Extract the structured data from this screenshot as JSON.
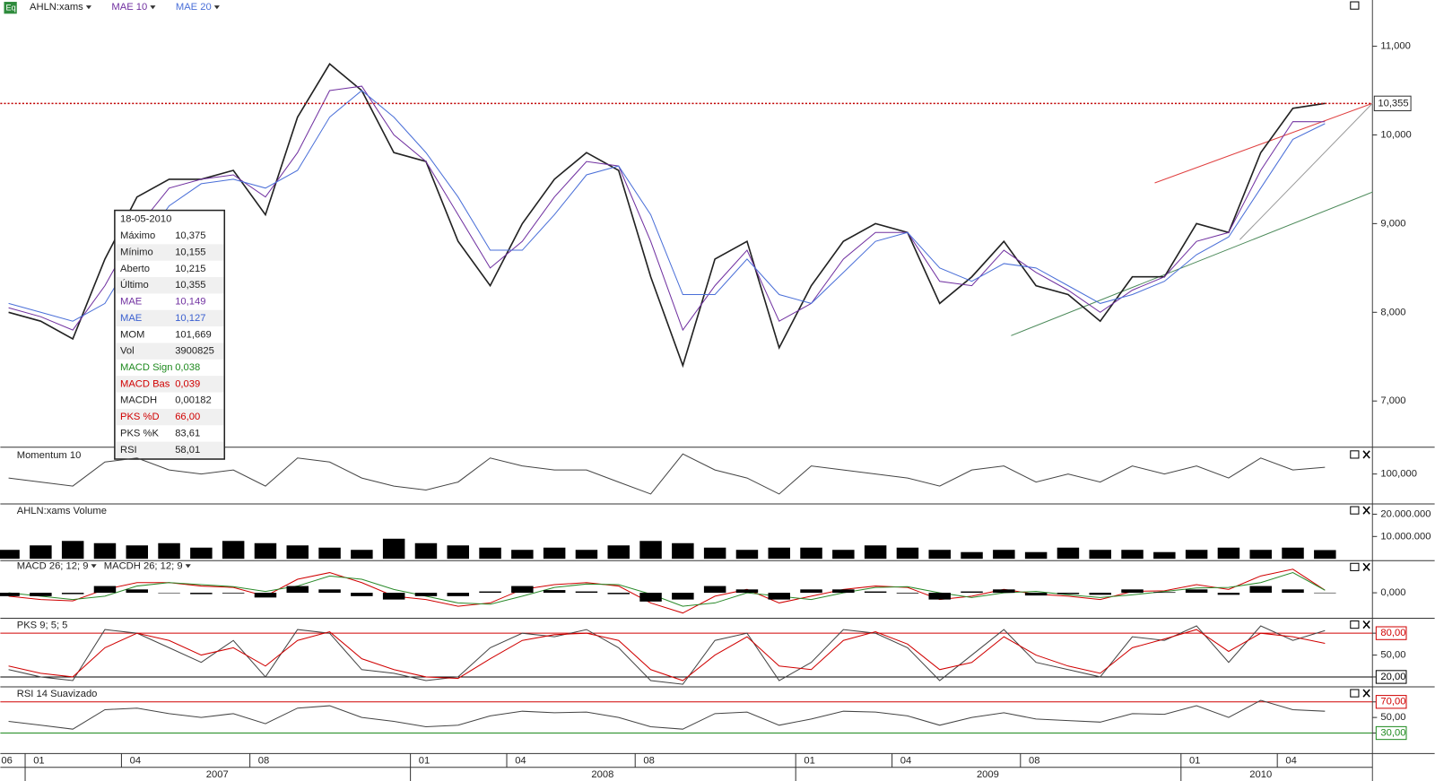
{
  "chart_data": [
    {
      "type": "line",
      "categories": [
        "06",
        "01",
        null,
        null,
        "04",
        null,
        null,
        null,
        "08",
        null,
        null,
        null,
        null,
        "01",
        null,
        null,
        "04",
        null,
        null,
        null,
        "08",
        null,
        null,
        null,
        null,
        "01",
        null,
        null,
        "04",
        null,
        null,
        null,
        "08",
        null,
        null,
        null,
        null,
        "01",
        null,
        null,
        "04",
        null
      ],
      "years": [
        "2007",
        "2008",
        "2009",
        "2010"
      ],
      "series": [
        {
          "name": "AHLN:xams",
          "color": "#222222",
          "values": [
            8000,
            7900,
            7700,
            8600,
            9300,
            9500,
            9500,
            9600,
            9100,
            10200,
            10800,
            10500,
            9800,
            9700,
            8800,
            8300,
            9000,
            9500,
            9800,
            9600,
            8400,
            7400,
            8600,
            8800,
            7600,
            8300,
            8800,
            9000,
            8900,
            8100,
            8400,
            8800,
            8300,
            8200,
            7900,
            8400,
            8400,
            9000,
            8900,
            9800,
            10300,
            10355
          ]
        },
        {
          "name": "MAE 10",
          "color": "#7030a0",
          "values": [
            8050,
            7950,
            7800,
            8300,
            8950,
            9400,
            9500,
            9550,
            9300,
            9800,
            10500,
            10550,
            10000,
            9700,
            9100,
            8500,
            8800,
            9300,
            9700,
            9650,
            8800,
            7800,
            8300,
            8700,
            7900,
            8100,
            8600,
            8900,
            8900,
            8350,
            8300,
            8700,
            8450,
            8250,
            8000,
            8250,
            8400,
            8800,
            8900,
            9600,
            10150,
            10149
          ]
        },
        {
          "name": "MAE 20",
          "color": "#4a6fd8",
          "values": [
            8100,
            8000,
            7900,
            8100,
            8700,
            9200,
            9450,
            9500,
            9400,
            9600,
            10200,
            10500,
            10200,
            9800,
            9300,
            8700,
            8700,
            9100,
            9550,
            9650,
            9100,
            8200,
            8200,
            8600,
            8200,
            8100,
            8450,
            8800,
            8900,
            8500,
            8350,
            8550,
            8500,
            8300,
            8100,
            8200,
            8350,
            8650,
            8850,
            9400,
            9950,
            10127
          ]
        }
      ],
      "ylim": [
        6510,
        11480
      ],
      "yticks": [
        {
          "value": 7000,
          "label": "7,000"
        },
        {
          "value": 8000,
          "label": "8,000"
        },
        {
          "value": 9000,
          "label": "9,000"
        },
        {
          "value": 10000,
          "label": "10,000"
        },
        {
          "value": 11000,
          "label": "11,000"
        }
      ],
      "last_value": {
        "value": 10355,
        "label": "10,355"
      },
      "tooltip": {
        "date": "18-05-2010",
        "rows": [
          {
            "label": "Máximo",
            "value": "10,375",
            "color": "#222222"
          },
          {
            "label": "Mínimo",
            "value": "10,155",
            "color": "#222222"
          },
          {
            "label": "Aberto",
            "value": "10,215",
            "color": "#222222"
          },
          {
            "label": "Último",
            "value": "10,355",
            "color": "#222222"
          },
          {
            "label": "MAE",
            "value": "10,149",
            "color": "#7030a0"
          },
          {
            "label": "MAE",
            "value": "10,127",
            "color": "#3a5fd0"
          },
          {
            "label": "MOM",
            "value": "101,669",
            "color": "#222222"
          },
          {
            "label": "Vol",
            "value": "3900825",
            "color": "#222222"
          },
          {
            "label": "MACD Sign",
            "value": "0,038",
            "color": "#1e8a1e"
          },
          {
            "label": "MACD Bas",
            "value": "0,039",
            "color": "#d00000"
          },
          {
            "label": "MACDH",
            "value": "0,00182",
            "color": "#222222"
          },
          {
            "label": "PKS %D",
            "value": "66,00",
            "color": "#d00000"
          },
          {
            "label": "PKS %K",
            "value": "83,61",
            "color": "#222222"
          },
          {
            "label": "RSI",
            "value": "58,01",
            "color": "#222222"
          }
        ]
      }
    },
    {
      "type": "line",
      "title": "Momentum 10",
      "series": [
        {
          "color": "#444444",
          "values": [
            99,
            98,
            97,
            103,
            104,
            101,
            100,
            101,
            97,
            104,
            103,
            99,
            97,
            96,
            98,
            104,
            102,
            101,
            101,
            98,
            95,
            105,
            101,
            99,
            95,
            102,
            101,
            100,
            99,
            97,
            101,
            102,
            98,
            100,
            98,
            102,
            100,
            102,
            99,
            104,
            101,
            101.669
          ]
        }
      ],
      "ylim": [
        93,
        106
      ],
      "yticks": [
        {
          "value": 100,
          "label": "100,000"
        }
      ]
    },
    {
      "type": "bar",
      "title": "AHLN:xams Volume",
      "series": [
        {
          "color": "#000000",
          "values": [
            4000000,
            6000000,
            8000000,
            7000000,
            6000000,
            7000000,
            5000000,
            8000000,
            7000000,
            6000000,
            5000000,
            4000000,
            9000000,
            7000000,
            6000000,
            5000000,
            4000000,
            5000000,
            4000000,
            6000000,
            8000000,
            7000000,
            5000000,
            4000000,
            5000000,
            5000000,
            4000000,
            6000000,
            5000000,
            4000000,
            3000000,
            4000000,
            3000000,
            5000000,
            4000000,
            4000000,
            3000000,
            4000000,
            5000000,
            4000000,
            5000000,
            3900825
          ]
        }
      ],
      "ylim": [
        0,
        23800000
      ],
      "yticks": [
        {
          "value": 10000000,
          "label": "10.000.000"
        },
        {
          "value": 20000000,
          "label": "20.000.000"
        }
      ]
    },
    {
      "type": "line",
      "series": [
        {
          "name": "MACD 26; 12; 9",
          "color": "#d00000",
          "values": [
            -0.05,
            -0.1,
            -0.12,
            0.05,
            0.15,
            0.15,
            0.1,
            0.08,
            -0.05,
            0.2,
            0.3,
            0.15,
            -0.05,
            -0.1,
            -0.2,
            -0.15,
            0.05,
            0.12,
            0.15,
            0.1,
            -0.15,
            -0.3,
            -0.05,
            0.05,
            -0.15,
            -0.05,
            0.05,
            0.1,
            0.08,
            -0.1,
            -0.05,
            0.05,
            -0.02,
            -0.05,
            -0.1,
            0.02,
            0.03,
            0.12,
            0.05,
            0.25,
            0.35,
            0.039
          ]
        },
        {
          "color": "#2a8a2a",
          "values": [
            0,
            -0.05,
            -0.1,
            -0.05,
            0.1,
            0.15,
            0.12,
            0.09,
            0.02,
            0.1,
            0.25,
            0.2,
            0.05,
            -0.05,
            -0.15,
            -0.17,
            -0.05,
            0.08,
            0.13,
            0.12,
            -0.02,
            -0.2,
            -0.15,
            0,
            -0.05,
            -0.1,
            0,
            0.08,
            0.09,
            0,
            -0.07,
            0,
            0.02,
            -0.03,
            -0.07,
            -0.03,
            0.02,
            0.07,
            0.08,
            0.15,
            0.3,
            0.038
          ]
        },
        {
          "name": "MACDH 26; 12; 9",
          "type": "bar",
          "color": "#000000",
          "values": [
            -0.05,
            -0.05,
            -0.02,
            0.1,
            0.05,
            0,
            -0.02,
            -0.01,
            -0.07,
            0.1,
            0.05,
            -0.05,
            -0.1,
            -0.05,
            -0.05,
            0.02,
            0.1,
            0.04,
            0.02,
            -0.02,
            -0.13,
            -0.1,
            0.1,
            0.05,
            -0.1,
            0.05,
            0.05,
            0.02,
            -0.01,
            -0.1,
            0.02,
            0.05,
            -0.04,
            -0.02,
            -0.03,
            0.05,
            0.01,
            0.05,
            -0.03,
            0.1,
            0.05,
            0.00182
          ]
        }
      ],
      "ylim": [
        -0.35,
        0.45
      ],
      "yticks": [
        {
          "value": 0,
          "label": "0,000"
        }
      ]
    },
    {
      "type": "line",
      "title": "PKS 9; 5; 5",
      "series": [
        {
          "color": "#444444",
          "values": [
            30,
            20,
            15,
            85,
            80,
            60,
            40,
            70,
            20,
            85,
            80,
            30,
            25,
            15,
            20,
            60,
            80,
            75,
            85,
            60,
            15,
            10,
            70,
            80,
            15,
            40,
            85,
            80,
            60,
            15,
            50,
            85,
            40,
            30,
            20,
            75,
            70,
            90,
            40,
            90,
            70,
            83.61
          ]
        },
        {
          "color": "#d00000",
          "values": [
            35,
            25,
            20,
            60,
            80,
            70,
            50,
            60,
            35,
            70,
            82,
            45,
            30,
            20,
            18,
            45,
            70,
            78,
            80,
            70,
            30,
            15,
            50,
            75,
            35,
            30,
            70,
            82,
            65,
            30,
            40,
            75,
            50,
            35,
            25,
            60,
            72,
            85,
            55,
            80,
            75,
            66
          ]
        }
      ],
      "ylim": [
        9,
        98
      ],
      "yticks": [
        {
          "value": 20,
          "label": "20,00"
        },
        {
          "value": 50,
          "label": "50,00"
        },
        {
          "value": 80,
          "label": "80,00"
        }
      ],
      "level_lines": [
        {
          "value": 80,
          "color": "#d00000"
        },
        {
          "value": 20,
          "color": "#000000"
        }
      ]
    },
    {
      "type": "line",
      "title": "RSI 14 Suavizado",
      "series": [
        {
          "color": "#444444",
          "values": [
            45,
            40,
            35,
            60,
            62,
            55,
            50,
            55,
            42,
            62,
            65,
            50,
            45,
            38,
            40,
            52,
            58,
            56,
            57,
            50,
            38,
            35,
            55,
            57,
            40,
            48,
            58,
            57,
            52,
            40,
            50,
            56,
            48,
            46,
            44,
            55,
            54,
            65,
            50,
            72,
            60,
            58.01
          ]
        }
      ],
      "ylim": [
        6,
        87
      ],
      "yticks": [
        {
          "value": 30,
          "label": "30,00"
        },
        {
          "value": 50,
          "label": "50,00"
        },
        {
          "value": 70,
          "label": "70,00"
        }
      ],
      "level_lines": [
        {
          "value": 70,
          "color": "#d00000"
        },
        {
          "value": 30,
          "color": "#1e8a1e"
        }
      ]
    }
  ]
}
